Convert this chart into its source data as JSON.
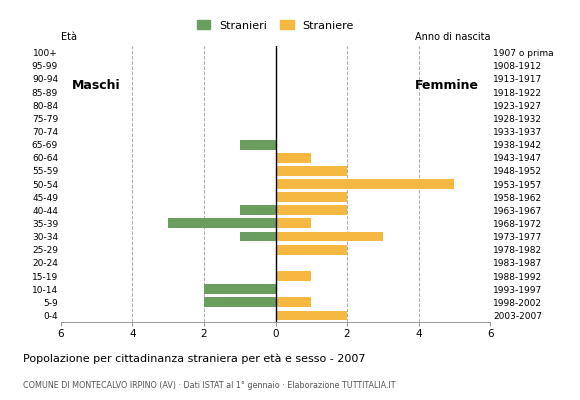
{
  "age_groups": [
    "0-4",
    "5-9",
    "10-14",
    "15-19",
    "20-24",
    "25-29",
    "30-34",
    "35-39",
    "40-44",
    "45-49",
    "50-54",
    "55-59",
    "60-64",
    "65-69",
    "70-74",
    "75-79",
    "80-84",
    "85-89",
    "90-94",
    "95-99",
    "100+"
  ],
  "birth_years": [
    "2003-2007",
    "1998-2002",
    "1993-1997",
    "1988-1992",
    "1983-1987",
    "1978-1982",
    "1973-1977",
    "1968-1972",
    "1963-1967",
    "1958-1962",
    "1953-1957",
    "1948-1952",
    "1943-1947",
    "1938-1942",
    "1933-1937",
    "1928-1932",
    "1923-1927",
    "1918-1922",
    "1913-1917",
    "1908-1912",
    "1907 o prima"
  ],
  "males": [
    0,
    2,
    2,
    0,
    0,
    0,
    1,
    3,
    1,
    0,
    0,
    0,
    0,
    1,
    0,
    0,
    0,
    0,
    0,
    0,
    0
  ],
  "females": [
    2,
    1,
    0,
    1,
    0,
    2,
    3,
    1,
    2,
    2,
    5,
    2,
    1,
    0,
    0,
    0,
    0,
    0,
    0,
    0,
    0
  ],
  "male_color": "#6a9e5e",
  "female_color": "#f5b942",
  "bar_height": 0.75,
  "xlim": 6,
  "title": "Popolazione per cittadinanza straniera per età e sesso - 2007",
  "subtitle": "COMUNE DI MONTECALVO IRPINO (AV) · Dati ISTAT al 1° gennaio · Elaborazione TUTTITALIA.IT",
  "label_eta": "Età",
  "label_anno": "Anno di nascita",
  "label_maschi": "Maschi",
  "label_femmine": "Femmine",
  "legend_male": "Stranieri",
  "legend_female": "Straniere",
  "grid_color": "#aaaaaa",
  "background_color": "#ffffff",
  "xtick_labels": [
    "6",
    "4",
    "2",
    "0",
    "2",
    "4",
    "6"
  ]
}
